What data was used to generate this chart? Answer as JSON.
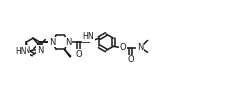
{
  "bg_color": "#ffffff",
  "bond_color": "#1a1a1a",
  "line_width": 1.1,
  "font_size": 6.0,
  "figsize": [
    2.46,
    0.91
  ],
  "dpi": 100,
  "xlim": [
    0,
    14.5
  ],
  "ylim": [
    0,
    5.2
  ]
}
